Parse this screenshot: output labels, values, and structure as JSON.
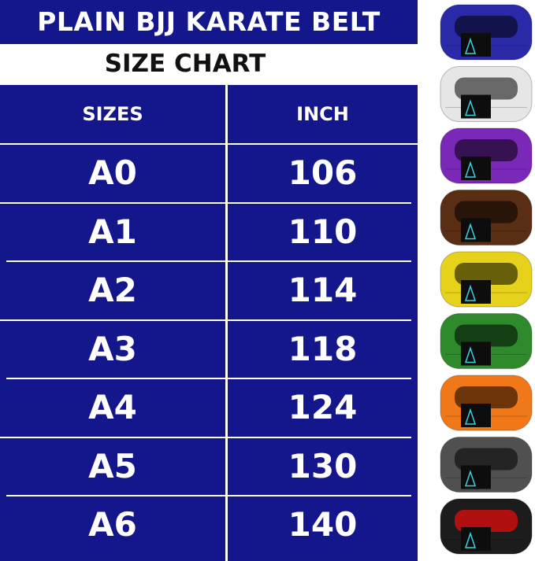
{
  "header": {
    "title": "PLAIN BJJ KARATE BELT",
    "subtitle": "SIZE CHART"
  },
  "table": {
    "columns": [
      "SIZES",
      "INCH"
    ],
    "rows": [
      [
        "A0",
        "106"
      ],
      [
        "A1",
        "110"
      ],
      [
        "A2",
        "114"
      ],
      [
        "A3",
        "118"
      ],
      [
        "A4",
        "124"
      ],
      [
        "A5",
        "130"
      ],
      [
        "A6",
        "140"
      ]
    ]
  }
}
